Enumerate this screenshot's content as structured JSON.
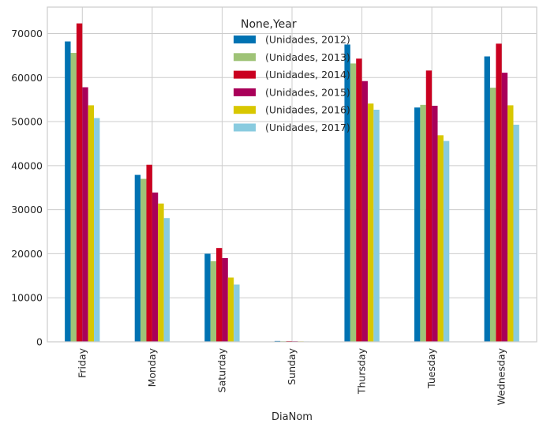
{
  "chart_data": {
    "type": "bar",
    "xlabel": "DiaNom",
    "ylabel": "",
    "ylim": [
      0,
      76000
    ],
    "yticks": [
      0,
      10000,
      20000,
      30000,
      40000,
      50000,
      60000,
      70000
    ],
    "grid": true,
    "categories": [
      "Friday",
      "Monday",
      "Saturday",
      "Sunday",
      "Thursday",
      "Tuesday",
      "Wednesday"
    ],
    "legend": {
      "title": "None,Year",
      "placement": "top-center"
    },
    "series": [
      {
        "name": "(Unidades, 2012)",
        "color": "#0072b2",
        "values": [
          68200,
          37900,
          20000,
          200,
          67500,
          53200,
          64800
        ]
      },
      {
        "name": "(Unidades, 2013)",
        "color": "#9fc377",
        "values": [
          65600,
          37000,
          18300,
          150,
          63200,
          53800,
          57700
        ]
      },
      {
        "name": "(Unidades, 2014)",
        "color": "#ca0020",
        "values": [
          72300,
          40200,
          21300,
          180,
          64300,
          61600,
          67700
        ]
      },
      {
        "name": "(Unidades, 2015)",
        "color": "#a90059",
        "values": [
          57800,
          33900,
          19000,
          150,
          59200,
          53600,
          61100
        ]
      },
      {
        "name": "(Unidades, 2016)",
        "color": "#d8c700",
        "values": [
          53700,
          31400,
          14600,
          120,
          54100,
          46900,
          53700
        ]
      },
      {
        "name": "(Unidades, 2017)",
        "color": "#89cbdf",
        "values": [
          50800,
          28100,
          13000,
          100,
          52700,
          45600,
          49300
        ]
      }
    ]
  }
}
